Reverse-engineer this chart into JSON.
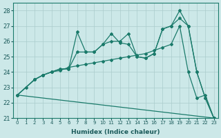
{
  "xlabel": "Humidex (Indice chaleur)",
  "bg_color": "#cce8e8",
  "grid_color": "#aacccc",
  "line_color": "#1a7a6a",
  "xlim_min": -0.5,
  "xlim_max": 23.5,
  "ylim_min": 21,
  "ylim_max": 28.5,
  "xticks": [
    0,
    1,
    2,
    3,
    4,
    5,
    6,
    7,
    8,
    9,
    10,
    11,
    12,
    13,
    14,
    15,
    16,
    17,
    18,
    19,
    20,
    21,
    22,
    23
  ],
  "yticks": [
    21,
    22,
    23,
    24,
    25,
    26,
    27,
    28
  ],
  "line1_x": [
    0,
    23
  ],
  "line1_y": [
    22.5,
    21.0
  ],
  "line2_x": [
    0,
    1,
    2,
    3,
    4,
    5,
    6,
    7,
    8,
    9,
    10,
    11,
    12,
    13,
    14,
    15,
    16,
    17,
    18,
    19,
    20,
    21,
    22,
    23
  ],
  "line2_y": [
    22.5,
    23.0,
    23.5,
    23.8,
    24.0,
    24.1,
    24.3,
    24.4,
    24.5,
    24.6,
    24.7,
    24.8,
    24.9,
    25.0,
    25.1,
    25.2,
    25.4,
    25.6,
    25.8,
    27.0,
    24.0,
    22.3,
    22.5,
    21.0
  ],
  "line3_x": [
    0,
    2,
    3,
    4,
    5,
    6,
    7,
    8,
    9,
    10,
    11,
    12,
    13,
    14,
    15,
    16,
    17,
    18,
    19,
    20,
    21,
    22,
    23
  ],
  "line3_y": [
    22.5,
    23.5,
    23.8,
    24.0,
    24.2,
    24.2,
    26.6,
    25.3,
    25.3,
    25.8,
    26.5,
    25.9,
    25.8,
    25.0,
    24.9,
    25.2,
    26.8,
    27.0,
    28.0,
    27.0,
    24.0,
    22.3,
    21.0
  ],
  "line4_x": [
    0,
    2,
    3,
    4,
    5,
    6,
    7,
    8,
    9,
    10,
    11,
    12,
    13,
    14,
    15,
    16,
    17,
    18,
    19,
    20,
    21,
    22,
    23
  ],
  "line4_y": [
    22.5,
    23.5,
    23.8,
    24.0,
    24.2,
    24.2,
    25.3,
    25.3,
    25.3,
    25.8,
    26.0,
    26.0,
    26.5,
    25.0,
    24.9,
    25.2,
    26.8,
    27.0,
    27.5,
    27.0,
    24.0,
    22.3,
    21.0
  ]
}
